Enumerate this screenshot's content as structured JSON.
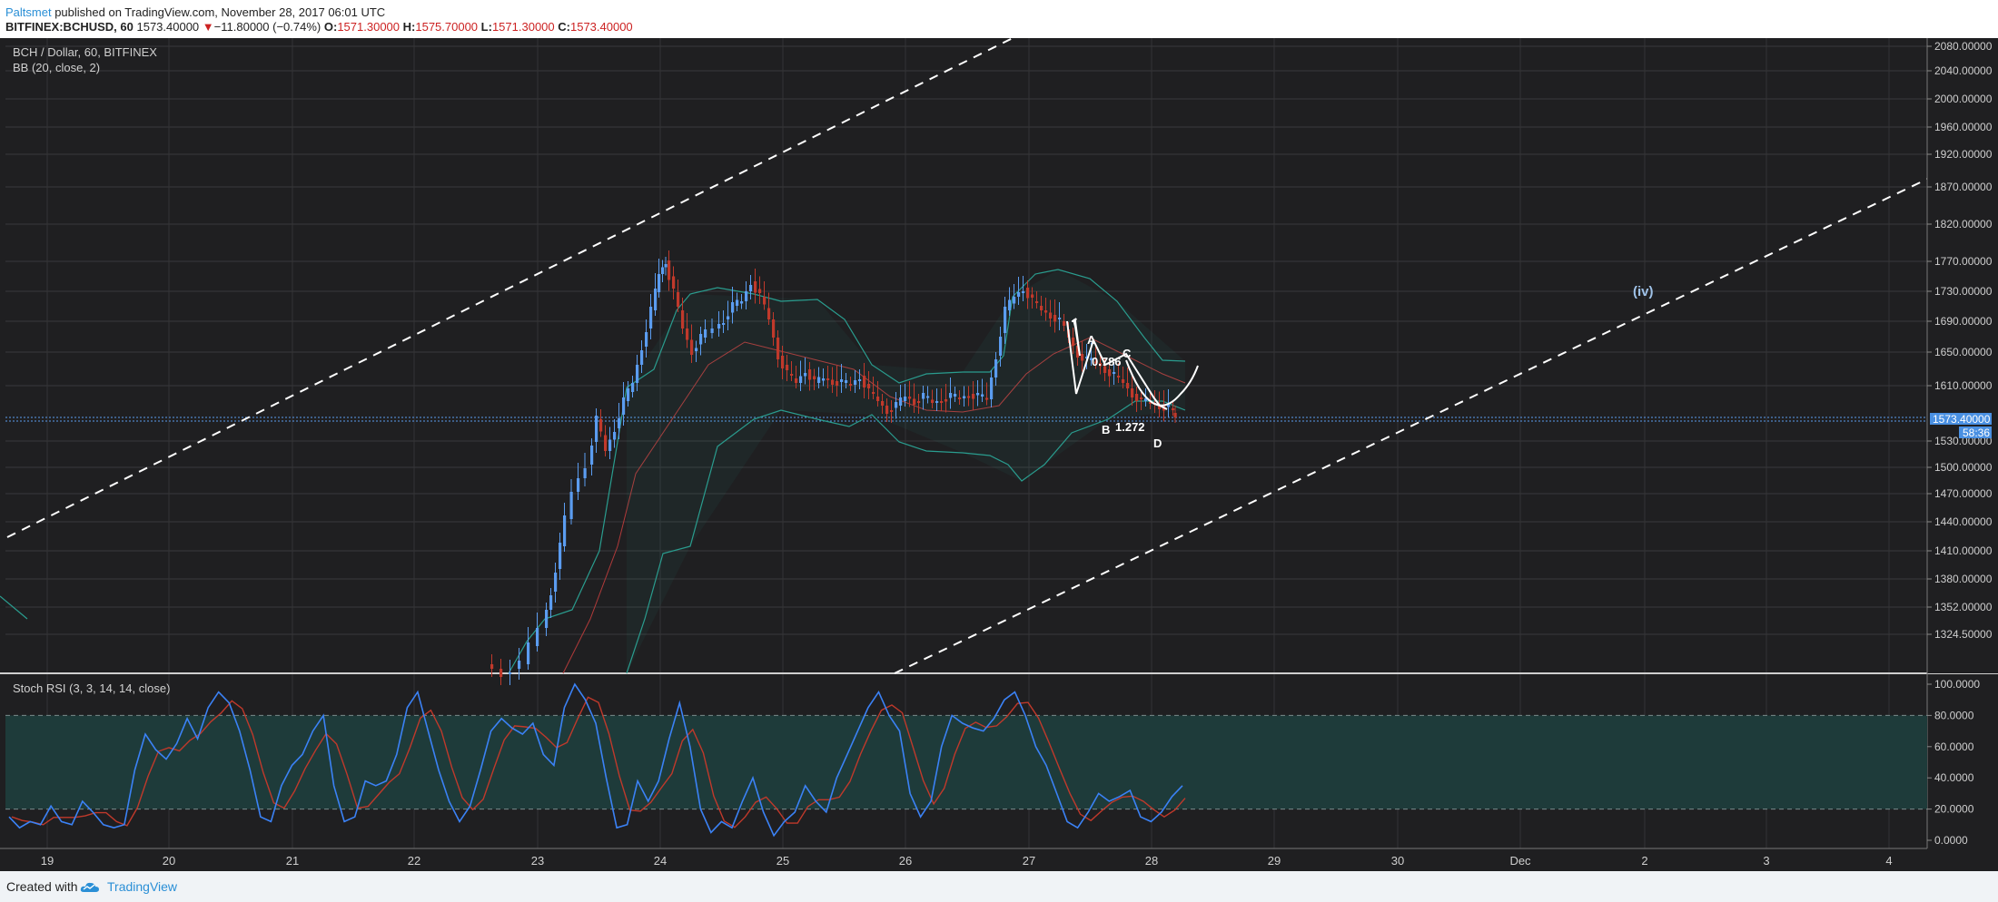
{
  "header": {
    "author": "Paltsmet",
    "published_text": "published on TradingView.com, November 28, 2017 06:01 UTC",
    "symbol": "BITFINEX:BCHUSD, 60",
    "last": "1573.40000",
    "change_arrow": "▼",
    "change": "−11.80000 (−0.74%)",
    "o_label": "O:",
    "o": "1571.30000",
    "h_label": "H:",
    "h": "1575.70000",
    "l_label": "L:",
    "l": "1571.30000",
    "c_label": "C:",
    "c": "1573.40000"
  },
  "chart_data": {
    "type": "candlestick",
    "title": "BCH / Dollar, 60, BITFINEX",
    "indicator": "BB (20, close, 2)",
    "x_labels": [
      "19",
      "20",
      "21",
      "22",
      "23",
      "24",
      "25",
      "26",
      "27",
      "28",
      "29",
      "30",
      "Dec",
      "2",
      "3",
      "4"
    ],
    "y_ticks": [
      "2080.00000",
      "2040.00000",
      "2000.00000",
      "1960.00000",
      "1920.00000",
      "1870.00000",
      "1820.00000",
      "1770.00000",
      "1730.00000",
      "1690.00000",
      "1650.00000",
      "1610.00000",
      "1530.00000",
      "1500.00000",
      "1470.00000",
      "1440.00000",
      "1410.00000",
      "1380.00000",
      "1352.00000",
      "1324.50000"
    ],
    "last_price_label": "1573.40000",
    "countdown_label": "58:36",
    "colors": {
      "up": "#5b9cf0",
      "down": "#c0392b",
      "band": "#2a9d8f",
      "basis": "#b03a3a",
      "background": "#1f1f21"
    },
    "annotations": {
      "wave_label": "(iv)",
      "pattern_points": [
        "A",
        "B",
        "C",
        "D"
      ],
      "ratio_1": "0.786",
      "ratio_2": "1.272"
    },
    "oscillator": {
      "title": "Stoch RSI (3, 3, 14, 14, close)",
      "y_ticks": [
        "100.0000",
        "80.0000",
        "60.0000",
        "40.0000",
        "20.0000",
        "0.0000"
      ],
      "band": [
        20,
        80
      ],
      "colors": {
        "k": "#3b82f6",
        "d": "#c0392b"
      },
      "k_values": [
        15,
        8,
        12,
        10,
        22,
        12,
        10,
        25,
        18,
        10,
        8,
        10,
        45,
        68,
        58,
        52,
        62,
        78,
        65,
        85,
        95,
        88,
        70,
        45,
        15,
        12,
        35,
        48,
        55,
        70,
        80,
        35,
        12,
        15,
        38,
        35,
        38,
        55,
        85,
        95,
        70,
        45,
        25,
        12,
        22,
        45,
        70,
        78,
        72,
        68,
        75,
        55,
        48,
        85,
        100,
        90,
        75,
        40,
        8,
        10,
        38,
        25,
        38,
        65,
        88,
        60,
        20,
        5,
        12,
        8,
        25,
        40,
        18,
        3,
        12,
        18,
        35,
        25,
        18,
        40,
        55,
        70,
        85,
        95,
        80,
        70,
        30,
        15,
        25,
        60,
        80,
        75,
        72,
        70,
        78,
        90,
        95,
        80,
        60,
        48,
        30,
        12,
        8,
        18,
        30,
        25,
        28,
        32,
        15,
        12,
        18,
        28,
        35
      ]
    }
  },
  "footer": {
    "created_with": "Created with",
    "brand": "TradingView"
  }
}
